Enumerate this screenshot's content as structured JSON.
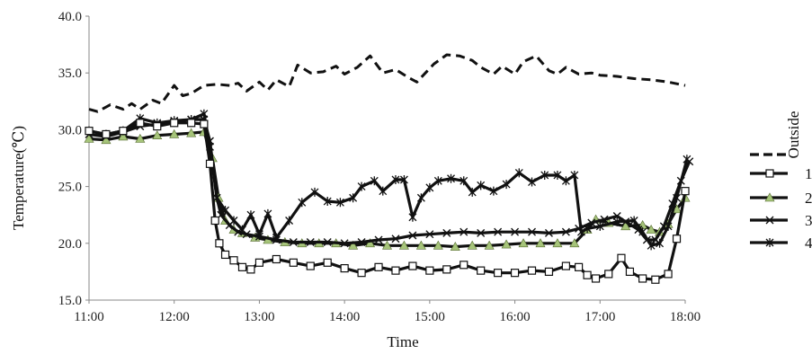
{
  "chart_data": {
    "type": "line",
    "xlabel": "Time",
    "ylabel": "Temperature(℃)",
    "xlim": [
      11,
      18
    ],
    "ylim": [
      15,
      40
    ],
    "x_ticks": [
      11,
      12,
      13,
      14,
      15,
      16,
      17,
      18
    ],
    "x_tick_labels": [
      "11:00",
      "12:00",
      "13:00",
      "14:00",
      "15:00",
      "16:00",
      "17:00",
      "18:00"
    ],
    "y_ticks": [
      15,
      20,
      25,
      30,
      35,
      40
    ],
    "y_tick_labels": [
      "15.0",
      "20.0",
      "25.0",
      "30.0",
      "35.0",
      "40.0"
    ],
    "grid": false,
    "legend_position": "right",
    "series": [
      {
        "name": "Outside",
        "color": "#111111",
        "marker": "none",
        "style": "dashed",
        "points": [
          [
            11.0,
            31.8
          ],
          [
            11.1,
            31.6
          ],
          [
            11.25,
            32.2
          ],
          [
            11.4,
            31.8
          ],
          [
            11.5,
            32.3
          ],
          [
            11.6,
            31.8
          ],
          [
            11.75,
            32.6
          ],
          [
            11.85,
            32.3
          ],
          [
            12.0,
            33.9
          ],
          [
            12.1,
            33.0
          ],
          [
            12.2,
            33.2
          ],
          [
            12.35,
            33.9
          ],
          [
            12.5,
            34.0
          ],
          [
            12.65,
            33.9
          ],
          [
            12.75,
            34.1
          ],
          [
            12.85,
            33.4
          ],
          [
            13.0,
            34.2
          ],
          [
            13.1,
            33.5
          ],
          [
            13.2,
            34.4
          ],
          [
            13.35,
            33.8
          ],
          [
            13.45,
            35.7
          ],
          [
            13.6,
            35.0
          ],
          [
            13.75,
            35.1
          ],
          [
            13.9,
            35.6
          ],
          [
            14.0,
            34.9
          ],
          [
            14.15,
            35.5
          ],
          [
            14.3,
            36.5
          ],
          [
            14.45,
            35.0
          ],
          [
            14.6,
            35.3
          ],
          [
            14.75,
            34.6
          ],
          [
            14.85,
            34.2
          ],
          [
            14.95,
            35.0
          ],
          [
            15.05,
            35.8
          ],
          [
            15.2,
            36.6
          ],
          [
            15.35,
            36.5
          ],
          [
            15.5,
            36.1
          ],
          [
            15.6,
            35.5
          ],
          [
            15.75,
            34.9
          ],
          [
            15.85,
            35.6
          ],
          [
            16.0,
            34.9
          ],
          [
            16.1,
            36.0
          ],
          [
            16.25,
            36.5
          ],
          [
            16.4,
            35.2
          ],
          [
            16.5,
            34.9
          ],
          [
            16.6,
            35.5
          ],
          [
            16.75,
            34.9
          ],
          [
            16.9,
            35.0
          ],
          [
            17.0,
            34.8
          ],
          [
            17.2,
            34.7
          ],
          [
            17.4,
            34.5
          ],
          [
            17.6,
            34.4
          ],
          [
            17.8,
            34.2
          ],
          [
            18.0,
            33.9
          ]
        ]
      },
      {
        "name": "1",
        "color": "#111111",
        "marker": "square",
        "style": "solid",
        "points": [
          [
            11.0,
            29.9
          ],
          [
            11.2,
            29.6
          ],
          [
            11.4,
            29.9
          ],
          [
            11.6,
            30.6
          ],
          [
            11.8,
            30.3
          ],
          [
            12.0,
            30.6
          ],
          [
            12.2,
            30.6
          ],
          [
            12.35,
            30.5
          ],
          [
            12.42,
            27.0
          ],
          [
            12.48,
            22.0
          ],
          [
            12.53,
            20.0
          ],
          [
            12.6,
            19.0
          ],
          [
            12.7,
            18.5
          ],
          [
            12.8,
            17.9
          ],
          [
            12.9,
            17.7
          ],
          [
            13.0,
            18.3
          ],
          [
            13.2,
            18.6
          ],
          [
            13.4,
            18.3
          ],
          [
            13.6,
            18.0
          ],
          [
            13.8,
            18.3
          ],
          [
            14.0,
            17.8
          ],
          [
            14.2,
            17.4
          ],
          [
            14.4,
            17.9
          ],
          [
            14.6,
            17.6
          ],
          [
            14.8,
            18.0
          ],
          [
            15.0,
            17.6
          ],
          [
            15.2,
            17.7
          ],
          [
            15.4,
            18.1
          ],
          [
            15.6,
            17.6
          ],
          [
            15.8,
            17.4
          ],
          [
            16.0,
            17.4
          ],
          [
            16.2,
            17.6
          ],
          [
            16.4,
            17.5
          ],
          [
            16.6,
            18.0
          ],
          [
            16.75,
            17.9
          ],
          [
            16.85,
            17.2
          ],
          [
            16.95,
            16.9
          ],
          [
            17.1,
            17.3
          ],
          [
            17.25,
            18.7
          ],
          [
            17.35,
            17.5
          ],
          [
            17.5,
            16.9
          ],
          [
            17.65,
            16.8
          ],
          [
            17.8,
            17.3
          ],
          [
            17.9,
            20.4
          ],
          [
            18.0,
            24.6
          ]
        ]
      },
      {
        "name": "2",
        "color": "#111111",
        "marker": "triangle",
        "markerFill": "#a6c47a",
        "style": "solid",
        "points": [
          [
            11.0,
            29.2
          ],
          [
            11.2,
            29.1
          ],
          [
            11.4,
            29.4
          ],
          [
            11.6,
            29.2
          ],
          [
            11.8,
            29.5
          ],
          [
            12.0,
            29.6
          ],
          [
            12.2,
            29.7
          ],
          [
            12.35,
            29.8
          ],
          [
            12.45,
            27.5
          ],
          [
            12.52,
            24.0
          ],
          [
            12.6,
            22.0
          ],
          [
            12.7,
            21.2
          ],
          [
            12.8,
            20.9
          ],
          [
            12.95,
            20.5
          ],
          [
            13.1,
            20.3
          ],
          [
            13.3,
            20.1
          ],
          [
            13.5,
            20.0
          ],
          [
            13.7,
            20.0
          ],
          [
            13.9,
            20.0
          ],
          [
            14.1,
            19.8
          ],
          [
            14.3,
            20.0
          ],
          [
            14.5,
            19.8
          ],
          [
            14.7,
            19.8
          ],
          [
            14.9,
            19.8
          ],
          [
            15.1,
            19.8
          ],
          [
            15.3,
            19.7
          ],
          [
            15.5,
            19.8
          ],
          [
            15.7,
            19.8
          ],
          [
            15.9,
            19.9
          ],
          [
            16.1,
            20.0
          ],
          [
            16.3,
            20.0
          ],
          [
            16.5,
            20.0
          ],
          [
            16.7,
            20.0
          ],
          [
            16.85,
            21.2
          ],
          [
            16.95,
            22.1
          ],
          [
            17.1,
            21.8
          ],
          [
            17.3,
            21.5
          ],
          [
            17.5,
            21.6
          ],
          [
            17.6,
            21.2
          ],
          [
            17.7,
            21.0
          ],
          [
            17.8,
            21.7
          ],
          [
            17.9,
            23.0
          ],
          [
            18.0,
            24.0
          ]
        ]
      },
      {
        "name": "3",
        "color": "#111111",
        "marker": "x",
        "style": "solid",
        "points": [
          [
            11.0,
            29.6
          ],
          [
            11.2,
            29.4
          ],
          [
            11.4,
            29.8
          ],
          [
            11.6,
            30.3
          ],
          [
            11.8,
            30.5
          ],
          [
            12.0,
            30.7
          ],
          [
            12.2,
            30.9
          ],
          [
            12.35,
            30.9
          ],
          [
            12.42,
            29.0
          ],
          [
            12.5,
            24.0
          ],
          [
            12.55,
            22.5
          ],
          [
            12.65,
            21.6
          ],
          [
            12.75,
            21.0
          ],
          [
            12.85,
            20.8
          ],
          [
            13.0,
            20.6
          ],
          [
            13.2,
            20.3
          ],
          [
            13.4,
            20.1
          ],
          [
            13.6,
            20.1
          ],
          [
            13.8,
            20.1
          ],
          [
            14.0,
            20.0
          ],
          [
            14.2,
            20.1
          ],
          [
            14.4,
            20.3
          ],
          [
            14.6,
            20.4
          ],
          [
            14.8,
            20.7
          ],
          [
            15.0,
            20.8
          ],
          [
            15.2,
            20.9
          ],
          [
            15.4,
            21.0
          ],
          [
            15.6,
            20.9
          ],
          [
            15.8,
            21.0
          ],
          [
            16.0,
            21.0
          ],
          [
            16.2,
            21.0
          ],
          [
            16.4,
            20.9
          ],
          [
            16.6,
            21.0
          ],
          [
            16.75,
            21.3
          ],
          [
            16.9,
            21.8
          ],
          [
            17.05,
            22.1
          ],
          [
            17.2,
            22.4
          ],
          [
            17.3,
            21.9
          ],
          [
            17.45,
            21.2
          ],
          [
            17.55,
            20.3
          ],
          [
            17.65,
            20.3
          ],
          [
            17.75,
            21.5
          ],
          [
            17.85,
            23.5
          ],
          [
            17.95,
            25.5
          ],
          [
            18.05,
            27.2
          ]
        ]
      },
      {
        "name": "4",
        "color": "#111111",
        "marker": "star",
        "style": "solid",
        "points": [
          [
            11.0,
            29.9
          ],
          [
            11.2,
            29.6
          ],
          [
            11.4,
            29.9
          ],
          [
            11.6,
            31.0
          ],
          [
            11.8,
            30.6
          ],
          [
            12.0,
            30.8
          ],
          [
            12.2,
            30.9
          ],
          [
            12.35,
            31.4
          ],
          [
            12.42,
            28.5
          ],
          [
            12.5,
            24.0
          ],
          [
            12.6,
            22.9
          ],
          [
            12.7,
            22.0
          ],
          [
            12.8,
            21.2
          ],
          [
            12.9,
            22.5
          ],
          [
            13.0,
            20.8
          ],
          [
            13.1,
            22.6
          ],
          [
            13.2,
            20.5
          ],
          [
            13.35,
            22.0
          ],
          [
            13.5,
            23.6
          ],
          [
            13.65,
            24.5
          ],
          [
            13.8,
            23.7
          ],
          [
            13.95,
            23.6
          ],
          [
            14.1,
            24.0
          ],
          [
            14.2,
            25.0
          ],
          [
            14.35,
            25.5
          ],
          [
            14.45,
            24.6
          ],
          [
            14.6,
            25.6
          ],
          [
            14.7,
            25.6
          ],
          [
            14.8,
            22.3
          ],
          [
            14.9,
            24.0
          ],
          [
            15.0,
            24.9
          ],
          [
            15.1,
            25.5
          ],
          [
            15.25,
            25.7
          ],
          [
            15.4,
            25.5
          ],
          [
            15.5,
            24.5
          ],
          [
            15.6,
            25.1
          ],
          [
            15.75,
            24.6
          ],
          [
            15.9,
            25.2
          ],
          [
            16.05,
            26.2
          ],
          [
            16.2,
            25.4
          ],
          [
            16.35,
            26.0
          ],
          [
            16.5,
            26.0
          ],
          [
            16.6,
            25.5
          ],
          [
            16.7,
            26.0
          ],
          [
            16.78,
            21.0
          ],
          [
            16.85,
            21.3
          ],
          [
            17.0,
            21.5
          ],
          [
            17.2,
            21.9
          ],
          [
            17.4,
            22.0
          ],
          [
            17.5,
            21.0
          ],
          [
            17.6,
            19.8
          ],
          [
            17.7,
            20.0
          ],
          [
            17.8,
            21.5
          ],
          [
            17.9,
            24.0
          ],
          [
            18.02,
            27.4
          ]
        ]
      }
    ]
  }
}
